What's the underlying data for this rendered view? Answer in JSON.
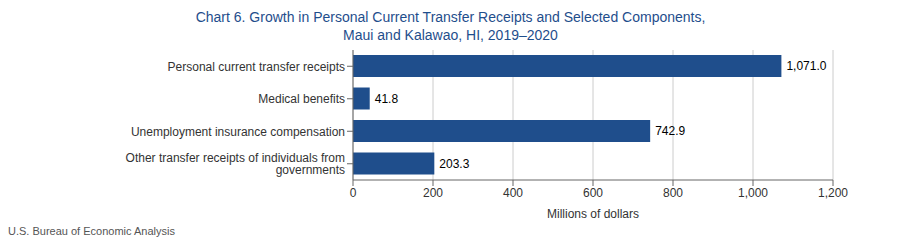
{
  "chart_data": {
    "type": "bar",
    "orientation": "horizontal",
    "title": "Chart 6. Growth in Personal Current Transfer Receipts and Selected Components,",
    "subtitle": "Maui and Kalawao, HI, 2019–2020",
    "title_color": "#1F4E8C",
    "categories": [
      "Other transfer receipts of individuals from governments",
      "Unemployment insurance compensation",
      "Medical benefits",
      "Personal current transfer receipts"
    ],
    "values": [
      203.3,
      742.9,
      41.8,
      1071.0
    ],
    "value_labels": [
      "203.3",
      "742.9",
      "41.8",
      "1,071.0"
    ],
    "data_labels": true,
    "color": "#1F4E8C",
    "xlabel": "Millions of dollars",
    "xlim": [
      0,
      1200
    ],
    "xticks": [
      0,
      200,
      400,
      600,
      800,
      {
        "value": 1000,
        "label": "1,000"
      },
      {
        "value": 1200,
        "label": "1,200"
      }
    ],
    "grid": true,
    "footnote": "U.S. Bureau of Economic Analysis"
  }
}
